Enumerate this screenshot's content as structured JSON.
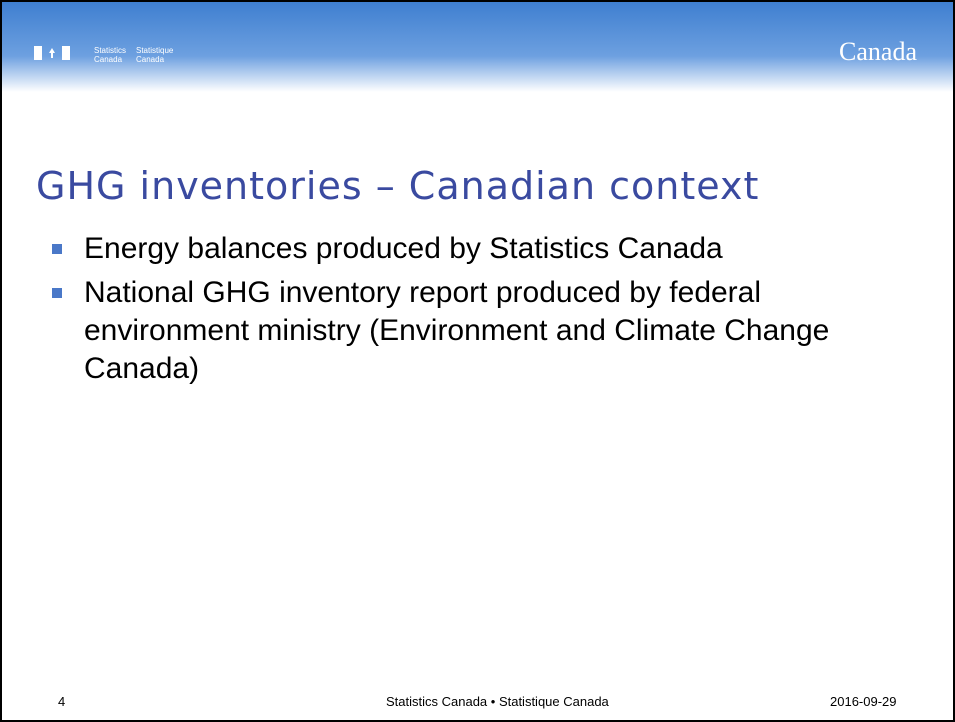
{
  "header": {
    "logo_en": [
      "Statistics",
      "Canada"
    ],
    "logo_fr": [
      "Statistique",
      "Canada"
    ],
    "wordmark": "Canada"
  },
  "slide": {
    "title": "GHG inventories – Canadian context",
    "bullets": [
      "Energy balances produced by Statistics Canada",
      "National GHG inventory report produced by federal environment ministry (Environment and Climate Change Canada)"
    ]
  },
  "footer": {
    "page": "4",
    "center": "Statistics Canada • Statistique Canada",
    "date": "2016-09-29"
  }
}
